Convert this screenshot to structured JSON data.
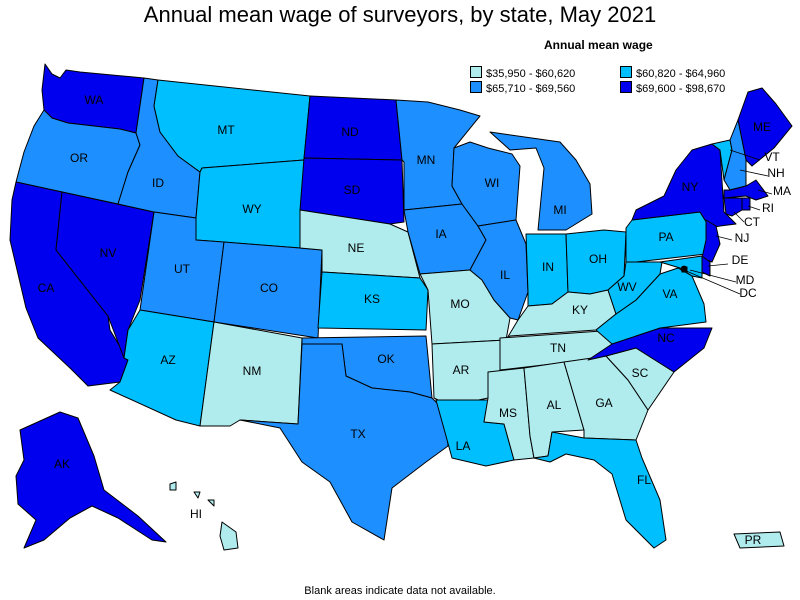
{
  "title": "Annual mean wage of surveyors, by state, May 2021",
  "legend": {
    "title": "Annual mean wage",
    "bins": [
      {
        "label": "$35,950 - $60,620",
        "color": "#b0ecee"
      },
      {
        "label": "$60,820 - $64,960",
        "color": "#00bfff"
      },
      {
        "label": "$65,710 - $69,560",
        "color": "#1e8fff"
      },
      {
        "label": "$69,600 - $98,670",
        "color": "#0000ee"
      }
    ]
  },
  "footnote": "Blank areas indicate data not available.",
  "states": [
    {
      "abbr": "WA",
      "bin": 3
    },
    {
      "abbr": "OR",
      "bin": 2
    },
    {
      "abbr": "CA",
      "bin": 3
    },
    {
      "abbr": "NV",
      "bin": 3
    },
    {
      "abbr": "ID",
      "bin": 2
    },
    {
      "abbr": "MT",
      "bin": 1
    },
    {
      "abbr": "WY",
      "bin": 1
    },
    {
      "abbr": "UT",
      "bin": 2
    },
    {
      "abbr": "AZ",
      "bin": 1
    },
    {
      "abbr": "CO",
      "bin": 2
    },
    {
      "abbr": "NM",
      "bin": 0
    },
    {
      "abbr": "ND",
      "bin": 3
    },
    {
      "abbr": "SD",
      "bin": 3
    },
    {
      "abbr": "NE",
      "bin": 0
    },
    {
      "abbr": "KS",
      "bin": 1
    },
    {
      "abbr": "OK",
      "bin": 2
    },
    {
      "abbr": "TX",
      "bin": 2
    },
    {
      "abbr": "MN",
      "bin": 2
    },
    {
      "abbr": "IA",
      "bin": 2
    },
    {
      "abbr": "MO",
      "bin": 0
    },
    {
      "abbr": "AR",
      "bin": 0
    },
    {
      "abbr": "LA",
      "bin": 1
    },
    {
      "abbr": "WI",
      "bin": 2
    },
    {
      "abbr": "IL",
      "bin": 2
    },
    {
      "abbr": "MI",
      "bin": 2
    },
    {
      "abbr": "IN",
      "bin": 1
    },
    {
      "abbr": "OH",
      "bin": 1
    },
    {
      "abbr": "KY",
      "bin": 0
    },
    {
      "abbr": "TN",
      "bin": 0
    },
    {
      "abbr": "MS",
      "bin": 0
    },
    {
      "abbr": "AL",
      "bin": 0
    },
    {
      "abbr": "GA",
      "bin": 0
    },
    {
      "abbr": "FL",
      "bin": 1
    },
    {
      "abbr": "SC",
      "bin": 0
    },
    {
      "abbr": "NC",
      "bin": 3
    },
    {
      "abbr": "VA",
      "bin": 1
    },
    {
      "abbr": "WV",
      "bin": 1
    },
    {
      "abbr": "PA",
      "bin": 1
    },
    {
      "abbr": "NY",
      "bin": 3
    },
    {
      "abbr": "ME",
      "bin": 3
    },
    {
      "abbr": "VT",
      "bin": 1
    },
    {
      "abbr": "NH",
      "bin": 2
    },
    {
      "abbr": "MA",
      "bin": 3
    },
    {
      "abbr": "RI",
      "bin": 3
    },
    {
      "abbr": "CT",
      "bin": 3
    },
    {
      "abbr": "NJ",
      "bin": 3
    },
    {
      "abbr": "DE",
      "bin": 3
    },
    {
      "abbr": "MD",
      "bin": 1
    },
    {
      "abbr": "DC",
      "bin": 1
    },
    {
      "abbr": "AK",
      "bin": 3
    },
    {
      "abbr": "HI",
      "bin": 0
    },
    {
      "abbr": "PR",
      "bin": 0
    }
  ]
}
